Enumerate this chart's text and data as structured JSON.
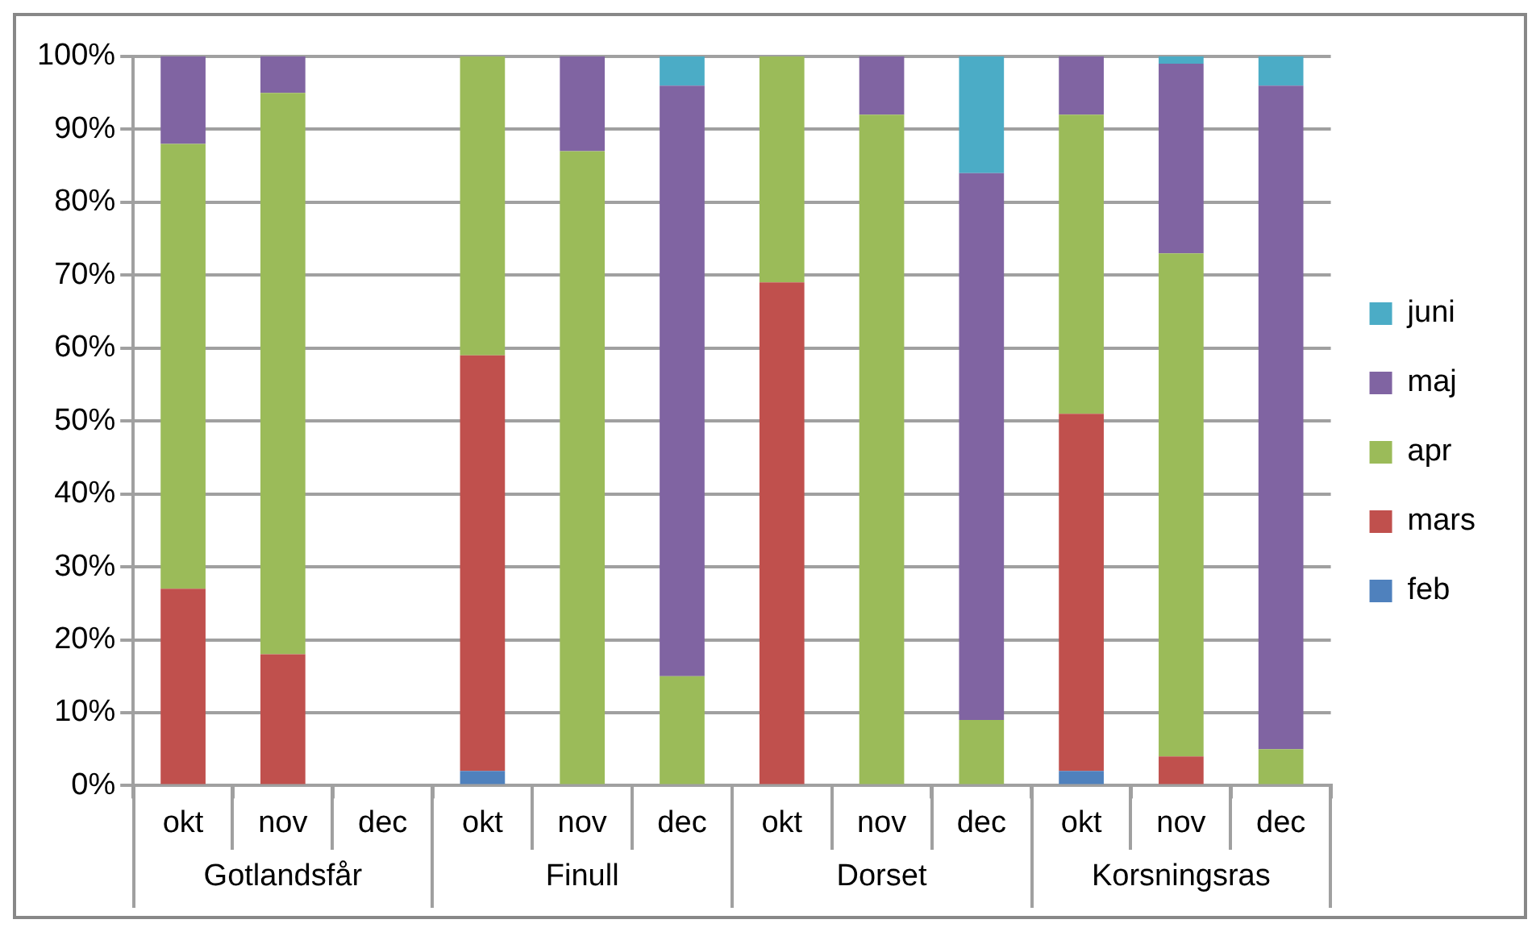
{
  "chart_data": {
    "type": "bar",
    "stacked": true,
    "categories": [
      "okt",
      "nov",
      "dec",
      "okt",
      "nov",
      "dec",
      "okt",
      "nov",
      "dec",
      "okt",
      "nov",
      "dec"
    ],
    "series": [
      {
        "name": "feb",
        "color": "#4f81bd",
        "values": [
          0,
          0,
          null,
          2,
          0,
          0,
          0,
          0,
          0,
          2,
          0,
          0
        ]
      },
      {
        "name": "mars",
        "color": "#c0504d",
        "values": [
          27,
          18,
          null,
          57,
          0,
          0,
          69,
          0,
          0,
          49,
          4,
          0
        ]
      },
      {
        "name": "apr",
        "color": "#9bbb59",
        "values": [
          61,
          77,
          null,
          41,
          87,
          15,
          31,
          92,
          9,
          41,
          69,
          5
        ]
      },
      {
        "name": "maj",
        "color": "#8064a2",
        "values": [
          12,
          5,
          null,
          0,
          13,
          81,
          0,
          8,
          75,
          8,
          26,
          91
        ]
      },
      {
        "name": "juni",
        "color": "#4bacc6",
        "values": [
          0,
          0,
          null,
          0,
          0,
          4,
          0,
          0,
          16,
          0,
          1,
          4
        ]
      }
    ],
    "annotations": [
      "Gotlandsfår",
      "Finull",
      "Dorset",
      "Korsningsras"
    ],
    "ylim": [
      0,
      100
    ],
    "yticks": [
      {
        "value": 0,
        "label": "0%"
      },
      {
        "value": 10,
        "label": "10%"
      },
      {
        "value": 20,
        "label": "20%"
      },
      {
        "value": 30,
        "label": "30%"
      },
      {
        "value": 40,
        "label": "40%"
      },
      {
        "value": 50,
        "label": "50%"
      },
      {
        "value": 60,
        "label": "60%"
      },
      {
        "value": 70,
        "label": "70%"
      },
      {
        "value": 80,
        "label": "80%"
      },
      {
        "value": 90,
        "label": "90%"
      },
      {
        "value": 100,
        "label": "100%"
      }
    ],
    "grid": "y",
    "legend": "right"
  }
}
